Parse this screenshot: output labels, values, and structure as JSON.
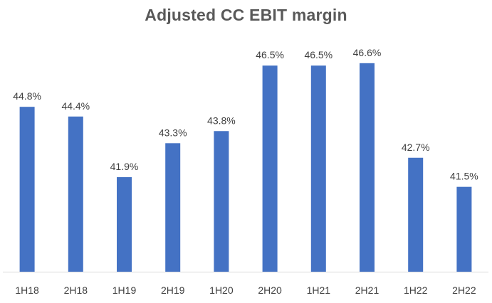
{
  "chart_data": {
    "type": "bar",
    "title": "Adjusted CC EBIT margin",
    "xlabel": "",
    "ylabel": "",
    "categories": [
      "1H18",
      "2H18",
      "1H19",
      "2H19",
      "1H20",
      "2H20",
      "1H21",
      "2H21",
      "1H22",
      "2H22"
    ],
    "values": [
      44.8,
      44.4,
      41.9,
      43.3,
      43.8,
      46.5,
      46.5,
      46.6,
      42.7,
      41.5
    ],
    "data_labels": [
      "44.8%",
      "44.4%",
      "41.9%",
      "43.3%",
      "43.8%",
      "46.5%",
      "46.5%",
      "46.6%",
      "42.7%",
      "41.5%"
    ],
    "ylim": [
      38.0,
      46.8
    ],
    "grid": false,
    "legend": "none",
    "bar_color": "#4472C4",
    "axis_color": "#D9D9D9",
    "label_color": "#404040",
    "title_color": "#595959"
  }
}
